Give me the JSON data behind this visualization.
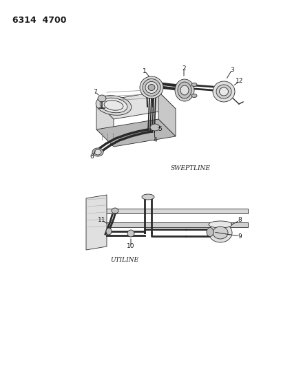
{
  "title": "6314  4700",
  "background_color": "#ffffff",
  "text_color": "#1a1a1a",
  "sweptline_label": "SWEPTLINE",
  "utiline_label": "UTILINE",
  "figsize": [
    4.08,
    5.33
  ],
  "dpi": 100,
  "line_color": "#2a2a2a",
  "fill_light": "#e8e8e8",
  "fill_mid": "#c8c8c8",
  "fill_dark": "#a0a0a0"
}
